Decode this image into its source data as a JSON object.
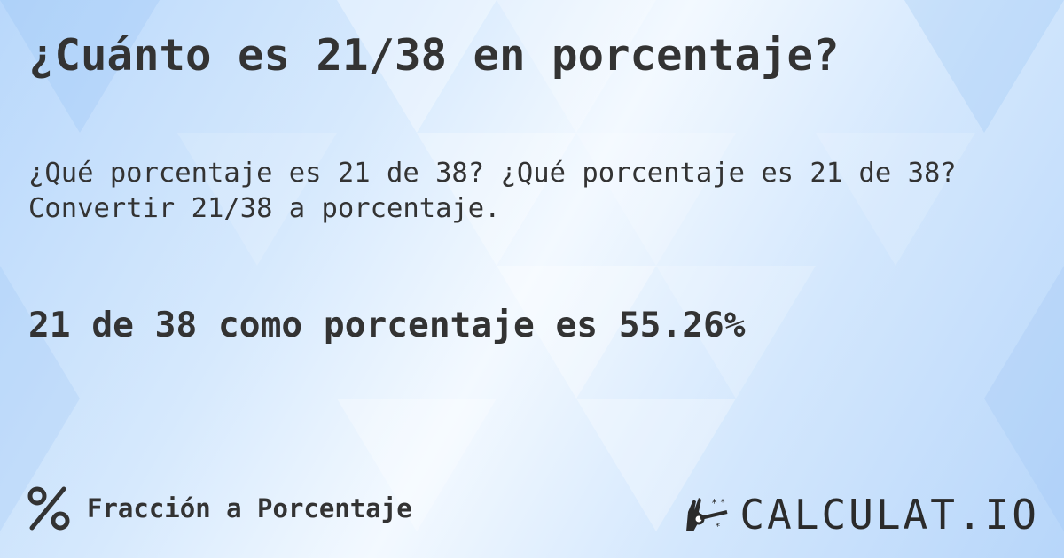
{
  "title": "¿Cuánto es 21/38 en porcentaje?",
  "subtitle_line1": "¿Qué porcentaje es 21 de 38? ¿Qué porcentaje es 21 de 38?",
  "subtitle_line2": "Convertir 21/38 a porcentaje.",
  "result": "21 de 38 como porcentaje es 55.26%",
  "footer": {
    "icon": "percent-icon",
    "label": "Fracción a Porcentaje"
  },
  "logo": {
    "text": "CALCULAT.IO",
    "icon": "magic-hand-icon"
  },
  "colors": {
    "text": "#333333",
    "background": "#cfe4fc"
  }
}
